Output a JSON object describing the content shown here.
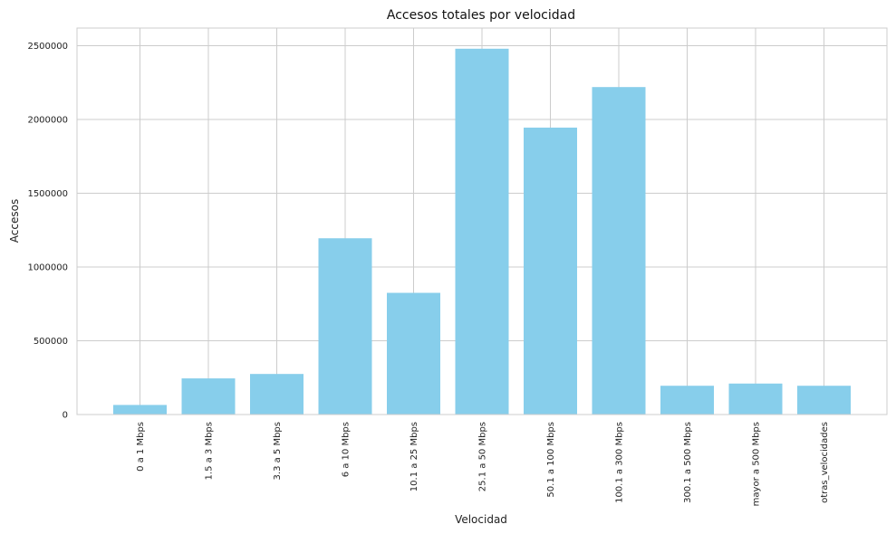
{
  "chart_data": {
    "type": "bar",
    "title": "Accesos totales por velocidad",
    "xlabel": "Velocidad",
    "ylabel": "Accesos",
    "categories": [
      "0 a 1 Mbps",
      "1.5 a 3 Mbps",
      "3.3 a 5 Mbps",
      "6 a 10 Mbps",
      "10.1 a 25 Mbps",
      "25.1 a 50 Mbps",
      "50.1 a 100 Mbps",
      "100.1 a 300 Mbps",
      "300.1 a 500 Mbps",
      "mayor a 500 Mbps",
      "otras_velocidades"
    ],
    "values": [
      65000,
      245000,
      275000,
      1195000,
      825000,
      2480000,
      1945000,
      2220000,
      195000,
      210000,
      195000
    ],
    "ylim": [
      0,
      2500000
    ],
    "yticks": [
      "0",
      "500000",
      "1000000",
      "1500000",
      "2000000",
      "2500000"
    ],
    "grid": true,
    "bar_color": "#87CEEB",
    "grid_color": "#cccccc"
  }
}
